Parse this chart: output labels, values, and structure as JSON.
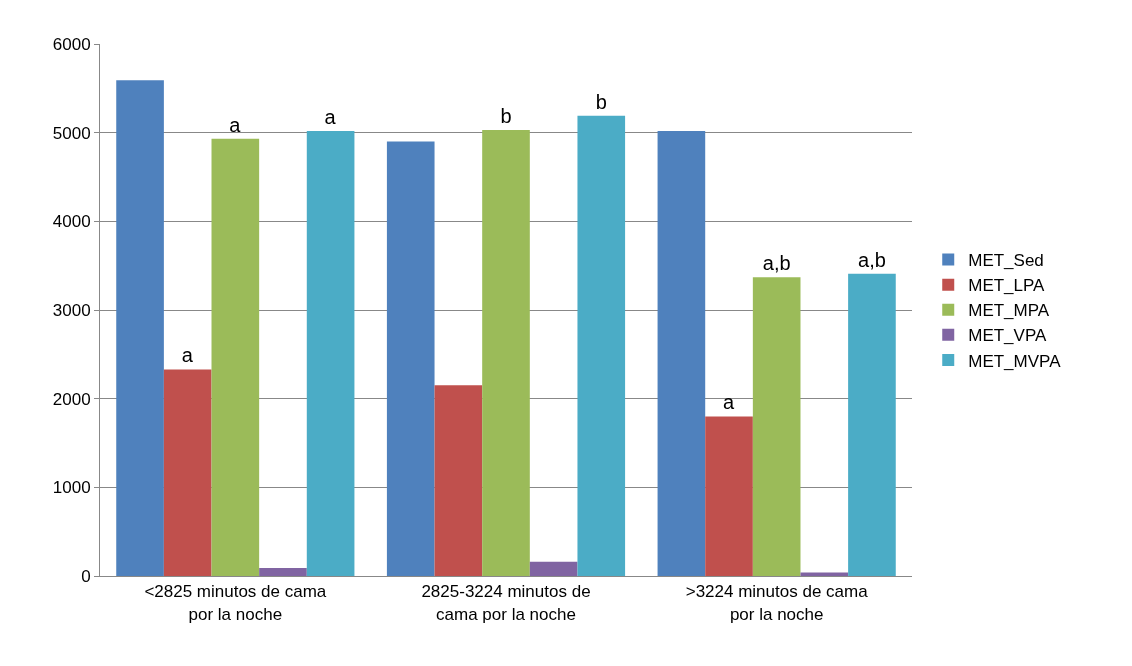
{
  "chart_data": {
    "type": "bar",
    "categories": [
      "<2825 minutos de cama por la noche",
      "2825-3224 minutos de cama por la noche",
      ">3224 minutos de cama por la noche"
    ],
    "series": [
      {
        "name": "MET_Sed",
        "color": "#4f81bd",
        "values": [
          5590,
          4900,
          5020
        ]
      },
      {
        "name": "MET_LPA",
        "color": "#c0504d",
        "values": [
          2330,
          2150,
          1800
        ],
        "value_labels": [
          "a",
          null,
          "a"
        ]
      },
      {
        "name": "MET_MPA",
        "color": "#9bbb59",
        "values": [
          4930,
          5030,
          3370
        ],
        "value_labels": [
          "a",
          "b",
          "a,b"
        ]
      },
      {
        "name": "MET_VPA",
        "color": "#8064a2",
        "values": [
          90,
          160,
          40
        ]
      },
      {
        "name": "MET_MVPA",
        "color": "#4bacc6",
        "values": [
          5020,
          5190,
          3410
        ],
        "value_labels": [
          "a",
          "b",
          "a,b"
        ]
      }
    ],
    "ylim": [
      0,
      6000
    ],
    "yticks": [
      0,
      1000,
      2000,
      3000,
      4000,
      5000,
      6000
    ],
    "grid": "y",
    "legend": "right"
  }
}
